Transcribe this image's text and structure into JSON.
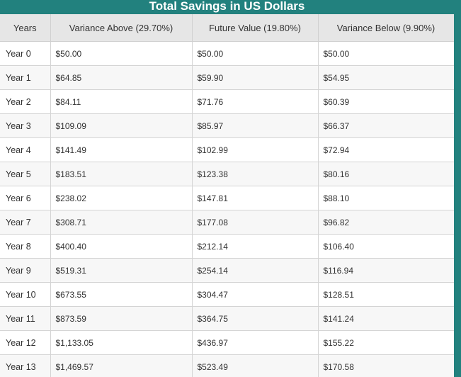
{
  "title": "Total Savings in US Dollars",
  "table": {
    "headers": [
      "Years",
      "Variance Above (29.70%)",
      "Future Value (19.80%)",
      "Variance Below (9.90%)"
    ],
    "rows": [
      [
        "Year 0",
        "$50.00",
        "$50.00",
        "$50.00"
      ],
      [
        "Year 1",
        "$64.85",
        "$59.90",
        "$54.95"
      ],
      [
        "Year 2",
        "$84.11",
        "$71.76",
        "$60.39"
      ],
      [
        "Year 3",
        "$109.09",
        "$85.97",
        "$66.37"
      ],
      [
        "Year 4",
        "$141.49",
        "$102.99",
        "$72.94"
      ],
      [
        "Year 5",
        "$183.51",
        "$123.38",
        "$80.16"
      ],
      [
        "Year 6",
        "$238.02",
        "$147.81",
        "$88.10"
      ],
      [
        "Year 7",
        "$308.71",
        "$177.08",
        "$96.82"
      ],
      [
        "Year 8",
        "$400.40",
        "$212.14",
        "$106.40"
      ],
      [
        "Year 9",
        "$519.31",
        "$254.14",
        "$116.94"
      ],
      [
        "Year 10",
        "$673.55",
        "$304.47",
        "$128.51"
      ],
      [
        "Year 11",
        "$873.59",
        "$364.75",
        "$141.24"
      ],
      [
        "Year 12",
        "$1,133.05",
        "$436.97",
        "$155.22"
      ],
      [
        "Year 13",
        "$1,469.57",
        "$523.49",
        "$170.58"
      ]
    ]
  },
  "colors": {
    "background": "#22817e",
    "header_bg": "#e6e6e6",
    "alt_row_bg": "#f7f7f7"
  }
}
